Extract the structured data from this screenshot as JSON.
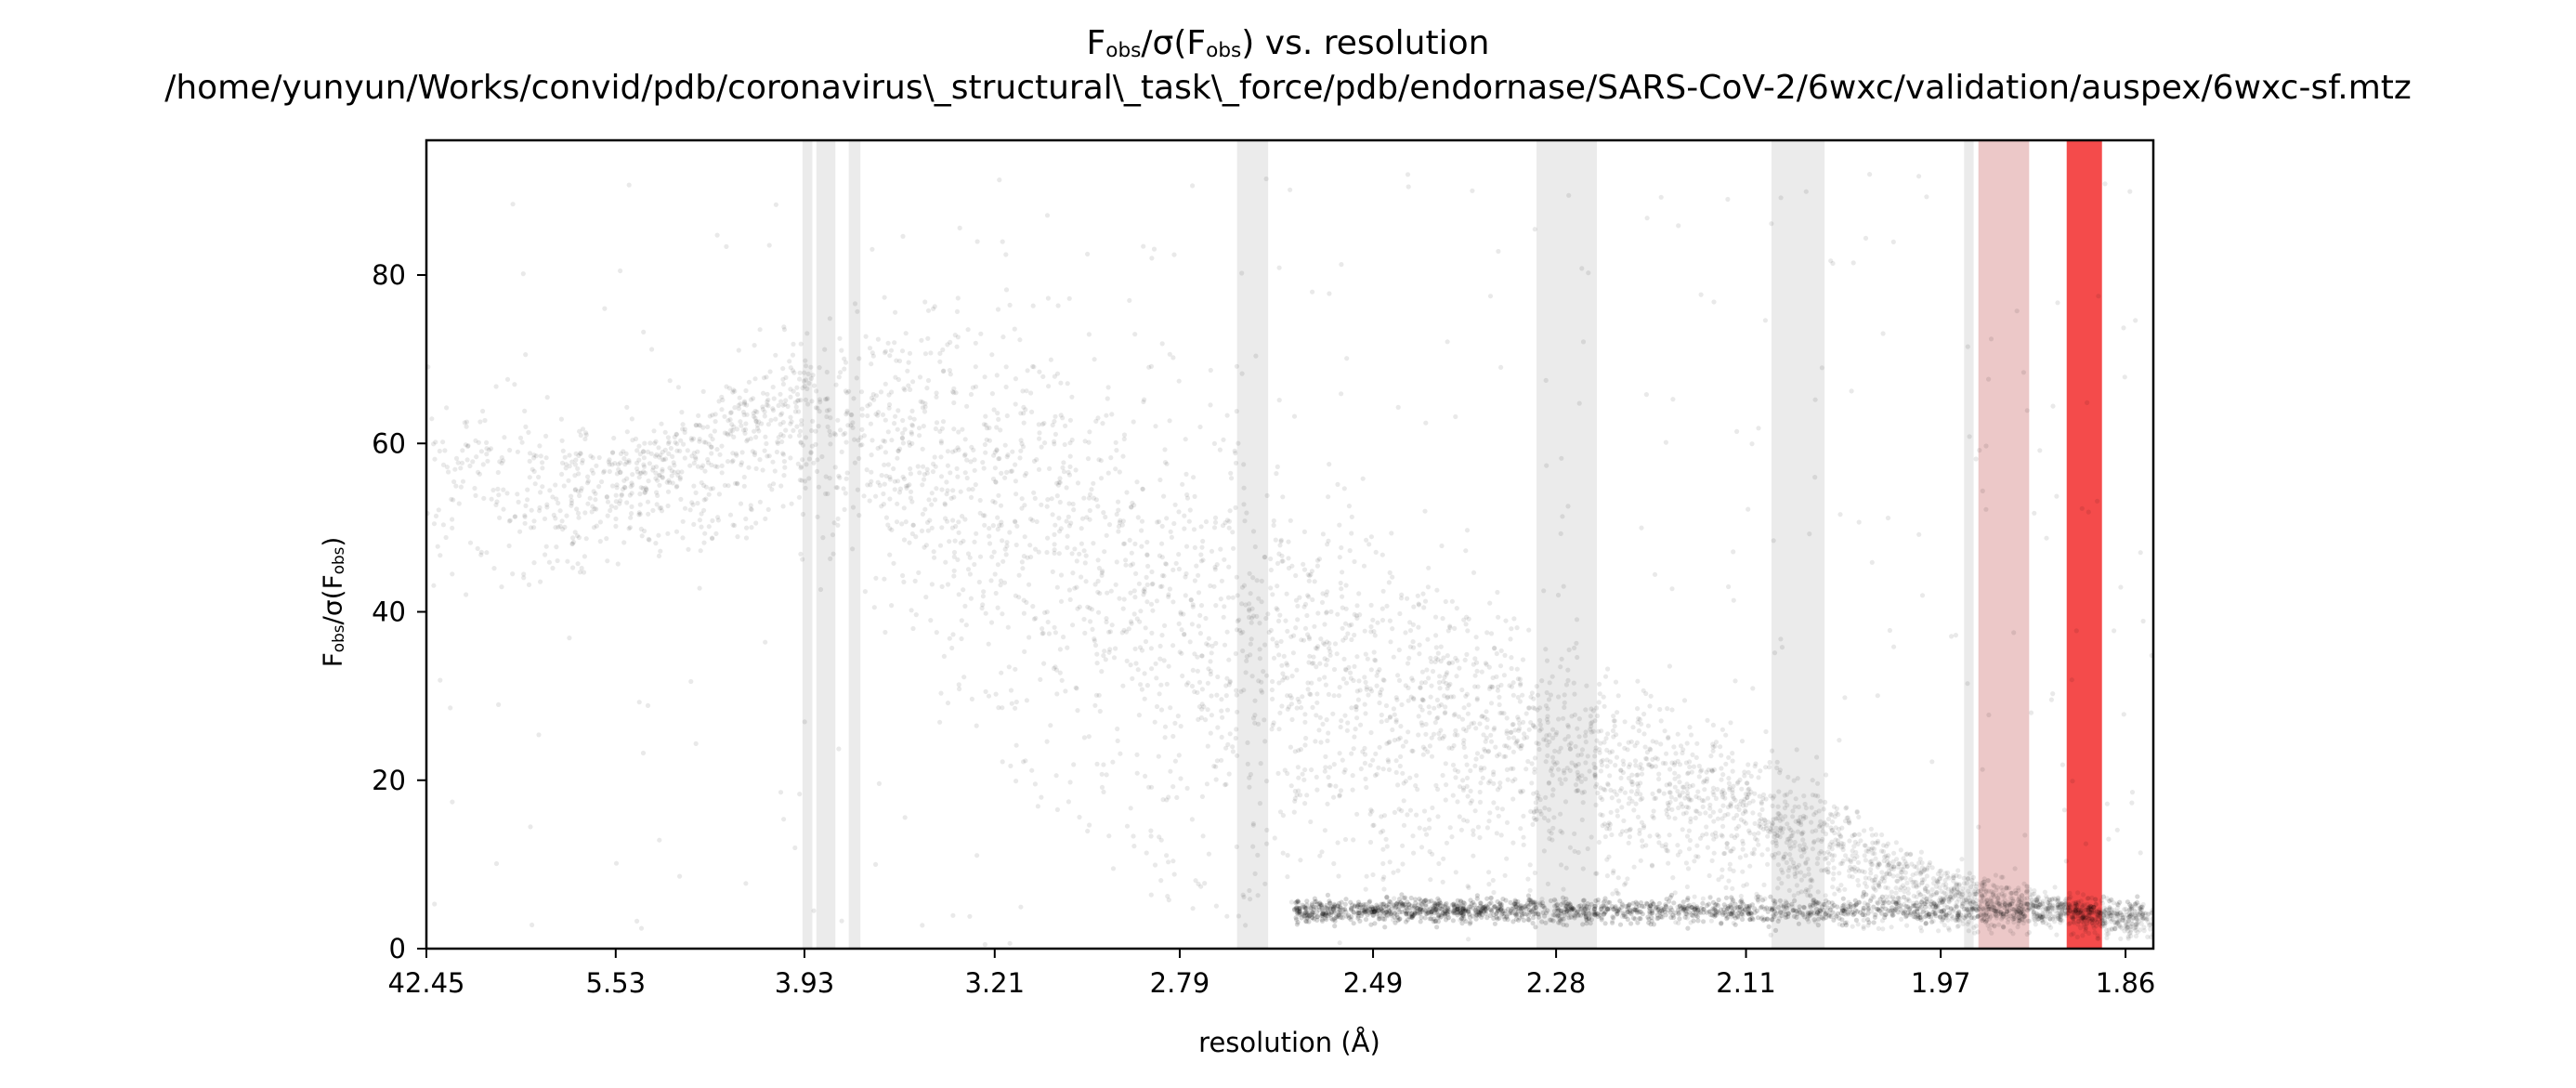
{
  "title": {
    "line1_main": "F",
    "line1_sub_a": "obs",
    "line1_mid": "/σ(F",
    "line1_sub_b": "obs",
    "line1_end": ") vs. resolution",
    "line2": "/home/yunyun/Works/convid/pdb/coronavirus\\_structural\\_task\\_force/pdb/endornase/SARS-CoV-2/6wxc/validation/auspex/6wxc-sf.mtz"
  },
  "ylabel": {
    "main": "F",
    "sub_a": "obs",
    "mid": "/σ(F",
    "sub_b": "obs",
    "end": ")"
  },
  "xlabel": "resolution (Å)",
  "chart_data": {
    "type": "scatter",
    "x_scale": "1/d²",
    "xlim_resolution": [
      42.45,
      1.845
    ],
    "ylim": [
      0,
      96
    ],
    "x_ticks": [
      "42.45",
      "5.53",
      "3.93",
      "3.21",
      "2.79",
      "2.49",
      "2.28",
      "2.11",
      "1.97",
      "1.86"
    ],
    "x_tick_values": [
      42.45,
      5.53,
      3.93,
      3.21,
      2.79,
      2.49,
      2.28,
      2.11,
      1.97,
      1.86
    ],
    "y_ticks": [
      0,
      20,
      40,
      60,
      80
    ],
    "point_color": "#000000",
    "point_alpha": 0.04,
    "ice_ring_bands": [
      {
        "from": 3.94,
        "to": 3.89,
        "color": "#d3d3d3",
        "alpha": 0.45
      },
      {
        "from": 3.87,
        "to": 3.78,
        "color": "#d3d3d3",
        "alpha": 0.45
      },
      {
        "from": 3.72,
        "to": 3.67,
        "color": "#d3d3d3",
        "alpha": 0.45
      },
      {
        "from": 2.69,
        "to": 2.64,
        "color": "#d3d3d3",
        "alpha": 0.45
      },
      {
        "from": 2.3,
        "to": 2.24,
        "color": "#d3d3d3",
        "alpha": 0.45
      },
      {
        "from": 2.09,
        "to": 2.05,
        "color": "#d3d3d3",
        "alpha": 0.45
      },
      {
        "from": 1.955,
        "to": 1.949,
        "color": "#d3d3d3",
        "alpha": 0.45
      },
      {
        "from": 1.946,
        "to": 1.915,
        "color": "#dc9a9a",
        "alpha": 0.55
      },
      {
        "from": 1.893,
        "to": 1.873,
        "color": "#f44b4b",
        "alpha": 1.0
      }
    ],
    "density_profile": [
      {
        "resolution": 42.45,
        "y_band": [
          40,
          75
        ]
      },
      {
        "resolution": 5.53,
        "y_band": [
          45,
          65
        ]
      },
      {
        "resolution": 3.93,
        "y_band": [
          50,
          80
        ]
      },
      {
        "resolution": 3.21,
        "y_band": [
          20,
          90
        ]
      },
      {
        "resolution": 2.79,
        "y_band": [
          3,
          80
        ]
      },
      {
        "resolution": 2.49,
        "y_band": [
          3,
          60
        ]
      },
      {
        "resolution": 2.28,
        "y_band": [
          3,
          45
        ]
      },
      {
        "resolution": 2.11,
        "y_band": [
          3,
          30
        ]
      },
      {
        "resolution": 1.97,
        "y_band": [
          2,
          12
        ]
      },
      {
        "resolution": 1.86,
        "y_band": [
          1,
          6
        ]
      }
    ]
  }
}
